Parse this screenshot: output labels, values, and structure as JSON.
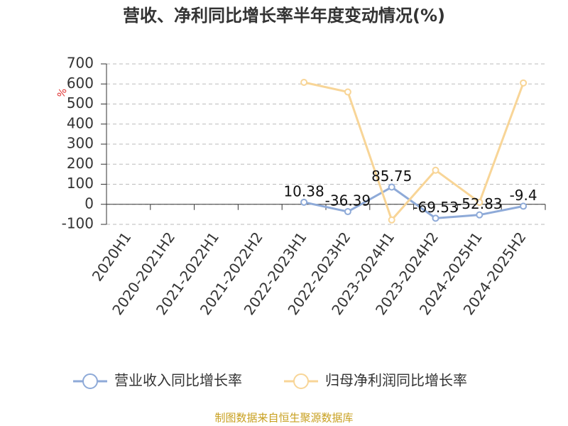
{
  "chart_data": {
    "type": "line",
    "title": "营收、净利同比增长率半年度变动情况(%)",
    "y_label": "%",
    "categories": [
      "2020H1",
      "2020-2021H2",
      "2021-2022H1",
      "2021-2022H2",
      "2022-2023H1",
      "2022-2023H2",
      "2023-2024H1",
      "2023-2024H2",
      "2024-2025H1",
      "2024-2025H2"
    ],
    "series": [
      {
        "name": "营业收入同比增长率",
        "color": "#8eaad8",
        "values": [
          null,
          null,
          null,
          null,
          10.38,
          -36.39,
          85.75,
          -69.53,
          -52.83,
          -9.4
        ],
        "show_labels": true
      },
      {
        "name": "归母净利润同比增长率",
        "color": "#f8d597",
        "values": [
          null,
          null,
          null,
          null,
          608,
          560,
          -78,
          170,
          10,
          605
        ],
        "show_labels": false
      }
    ],
    "ylim": [
      -100,
      700
    ],
    "yticks": [
      -100,
      0,
      100,
      200,
      300,
      400,
      500,
      600,
      700
    ],
    "grid": true,
    "source": "制图数据来自恒生聚源数据库"
  }
}
